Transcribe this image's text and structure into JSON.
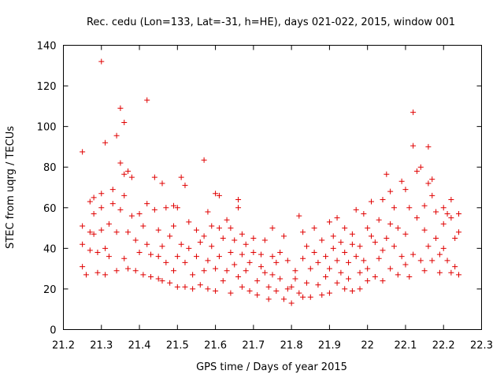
{
  "chart_data": {
    "type": "scatter",
    "title": "Rec. cedu (Lon=133, Lat=-31, h=HE), days 021-022, 2015, window 001",
    "xlabel": "GPS time / Days of year 2015",
    "ylabel": "STEC from uqrg / TECUs",
    "xlim": [
      21.2,
      22.3
    ],
    "ylim": [
      0,
      140
    ],
    "xticks": [
      "21.2",
      "21.3",
      "21.4",
      "21.5",
      "21.6",
      "21.7",
      "21.8",
      "21.9",
      "22",
      "22.1",
      "22.2",
      "22.3"
    ],
    "yticks": [
      "0",
      "20",
      "40",
      "60",
      "80",
      "100",
      "120",
      "140"
    ],
    "marker_color": "#e00000",
    "marker": "plus",
    "legend": "none",
    "grid": false,
    "series": [
      {
        "name": "STEC",
        "points": [
          [
            21.25,
            87.5
          ],
          [
            21.25,
            51
          ],
          [
            21.25,
            42
          ],
          [
            21.25,
            31
          ],
          [
            21.26,
            27
          ],
          [
            21.27,
            63
          ],
          [
            21.27,
            48
          ],
          [
            21.27,
            39
          ],
          [
            21.28,
            65
          ],
          [
            21.28,
            57
          ],
          [
            21.28,
            47
          ],
          [
            21.29,
            28
          ],
          [
            21.29,
            38
          ],
          [
            21.3,
            132
          ],
          [
            21.3,
            67
          ],
          [
            21.3,
            60
          ],
          [
            21.3,
            49
          ],
          [
            21.31,
            92
          ],
          [
            21.31,
            27
          ],
          [
            21.31,
            40
          ],
          [
            21.32,
            52
          ],
          [
            21.32,
            36
          ],
          [
            21.33,
            69
          ],
          [
            21.33,
            62
          ],
          [
            21.34,
            95.5
          ],
          [
            21.34,
            48
          ],
          [
            21.34,
            29
          ],
          [
            21.35,
            109
          ],
          [
            21.35,
            82
          ],
          [
            21.35,
            59
          ],
          [
            21.36,
            102
          ],
          [
            21.36,
            76.5
          ],
          [
            21.36,
            66
          ],
          [
            21.36,
            35
          ],
          [
            21.37,
            78
          ],
          [
            21.37,
            48
          ],
          [
            21.37,
            30
          ],
          [
            21.38,
            75
          ],
          [
            21.38,
            56
          ],
          [
            21.39,
            44
          ],
          [
            21.39,
            29
          ],
          [
            21.4,
            57
          ],
          [
            21.4,
            38
          ],
          [
            21.41,
            51
          ],
          [
            21.41,
            27
          ],
          [
            21.42,
            113
          ],
          [
            21.42,
            62
          ],
          [
            21.42,
            42
          ],
          [
            21.43,
            37
          ],
          [
            21.43,
            26
          ],
          [
            21.44,
            75
          ],
          [
            21.44,
            59
          ],
          [
            21.45,
            49
          ],
          [
            21.45,
            36
          ],
          [
            21.45,
            25
          ],
          [
            21.46,
            72
          ],
          [
            21.46,
            41
          ],
          [
            21.46,
            24
          ],
          [
            21.47,
            60
          ],
          [
            21.47,
            33
          ],
          [
            21.48,
            46
          ],
          [
            21.48,
            23
          ],
          [
            21.49,
            61
          ],
          [
            21.49,
            51
          ],
          [
            21.49,
            29
          ],
          [
            21.5,
            60
          ],
          [
            21.5,
            36
          ],
          [
            21.5,
            21
          ],
          [
            21.51,
            75
          ],
          [
            21.51,
            42
          ],
          [
            21.52,
            71
          ],
          [
            21.52,
            33
          ],
          [
            21.52,
            21
          ],
          [
            21.53,
            53
          ],
          [
            21.53,
            40
          ],
          [
            21.54,
            27
          ],
          [
            21.54,
            20
          ],
          [
            21.55,
            49
          ],
          [
            21.55,
            36
          ],
          [
            21.56,
            43
          ],
          [
            21.56,
            22
          ],
          [
            21.57,
            83.5
          ],
          [
            21.57,
            46
          ],
          [
            21.57,
            29
          ],
          [
            21.58,
            58
          ],
          [
            21.58,
            34
          ],
          [
            21.58,
            20
          ],
          [
            21.59,
            51
          ],
          [
            21.59,
            41
          ],
          [
            21.6,
            67
          ],
          [
            21.6,
            30
          ],
          [
            21.6,
            19
          ],
          [
            21.61,
            66
          ],
          [
            21.61,
            50
          ],
          [
            21.61,
            36
          ],
          [
            21.62,
            45
          ],
          [
            21.62,
            24
          ],
          [
            21.63,
            54
          ],
          [
            21.63,
            29
          ],
          [
            21.64,
            50
          ],
          [
            21.64,
            38
          ],
          [
            21.64,
            18
          ],
          [
            21.65,
            44
          ],
          [
            21.65,
            32
          ],
          [
            21.66,
            64
          ],
          [
            21.66,
            60
          ],
          [
            21.66,
            26
          ],
          [
            21.67,
            47
          ],
          [
            21.67,
            37
          ],
          [
            21.67,
            21
          ],
          [
            21.68,
            42
          ],
          [
            21.68,
            29
          ],
          [
            21.69,
            33
          ],
          [
            21.69,
            19
          ],
          [
            21.7,
            45
          ],
          [
            21.7,
            38
          ],
          [
            21.71,
            24
          ],
          [
            21.71,
            17
          ],
          [
            21.72,
            37
          ],
          [
            21.72,
            31
          ],
          [
            21.73,
            28
          ],
          [
            21.73,
            44
          ],
          [
            21.74,
            21
          ],
          [
            21.74,
            15
          ],
          [
            21.75,
            50
          ],
          [
            21.75,
            36
          ],
          [
            21.75,
            27
          ],
          [
            21.76,
            33
          ],
          [
            21.76,
            19
          ],
          [
            21.77,
            38
          ],
          [
            21.77,
            25
          ],
          [
            21.78,
            46
          ],
          [
            21.78,
            15
          ],
          [
            21.79,
            34
          ],
          [
            21.79,
            20
          ],
          [
            21.8,
            21
          ],
          [
            21.8,
            13
          ],
          [
            21.81,
            29
          ],
          [
            21.81,
            25
          ],
          [
            21.82,
            56
          ],
          [
            21.82,
            18
          ],
          [
            21.83,
            48
          ],
          [
            21.83,
            35
          ],
          [
            21.83,
            16
          ],
          [
            21.84,
            41
          ],
          [
            21.84,
            23
          ],
          [
            21.85,
            30
          ],
          [
            21.85,
            16
          ],
          [
            21.86,
            50
          ],
          [
            21.86,
            38
          ],
          [
            21.87,
            33
          ],
          [
            21.87,
            22
          ],
          [
            21.88,
            44
          ],
          [
            21.88,
            17
          ],
          [
            21.89,
            36
          ],
          [
            21.89,
            26
          ],
          [
            21.9,
            53
          ],
          [
            21.9,
            30
          ],
          [
            21.9,
            18
          ],
          [
            21.91,
            46
          ],
          [
            21.91,
            40
          ],
          [
            21.92,
            55
          ],
          [
            21.92,
            34
          ],
          [
            21.92,
            23
          ],
          [
            21.93,
            43
          ],
          [
            21.93,
            28
          ],
          [
            21.94,
            50
          ],
          [
            21.94,
            38
          ],
          [
            21.94,
            20
          ],
          [
            21.95,
            33
          ],
          [
            21.95,
            25
          ],
          [
            21.96,
            47
          ],
          [
            21.96,
            42
          ],
          [
            21.96,
            19
          ],
          [
            21.97,
            59
          ],
          [
            21.97,
            36
          ],
          [
            21.98,
            41
          ],
          [
            21.98,
            28
          ],
          [
            21.98,
            20
          ],
          [
            21.99,
            57
          ],
          [
            21.99,
            34
          ],
          [
            22.0,
            50
          ],
          [
            22.0,
            30
          ],
          [
            22.0,
            24
          ],
          [
            22.01,
            63
          ],
          [
            22.01,
            46
          ],
          [
            22.02,
            43
          ],
          [
            22.02,
            26
          ],
          [
            22.03,
            54
          ],
          [
            22.03,
            35
          ],
          [
            22.04,
            64
          ],
          [
            22.04,
            39
          ],
          [
            22.04,
            24
          ],
          [
            22.05,
            76.5
          ],
          [
            22.05,
            45
          ],
          [
            22.06,
            68
          ],
          [
            22.06,
            52
          ],
          [
            22.06,
            30
          ],
          [
            22.07,
            60
          ],
          [
            22.07,
            41
          ],
          [
            22.08,
            50
          ],
          [
            22.08,
            27
          ],
          [
            22.09,
            73
          ],
          [
            22.09,
            36
          ],
          [
            22.1,
            69
          ],
          [
            22.1,
            47
          ],
          [
            22.1,
            32
          ],
          [
            22.11,
            60
          ],
          [
            22.11,
            26
          ],
          [
            22.12,
            107
          ],
          [
            22.12,
            90.5
          ],
          [
            22.12,
            37
          ],
          [
            22.13,
            78
          ],
          [
            22.13,
            55
          ],
          [
            22.14,
            80
          ],
          [
            22.14,
            34
          ],
          [
            22.15,
            61
          ],
          [
            22.15,
            49
          ],
          [
            22.15,
            29
          ],
          [
            22.16,
            90
          ],
          [
            22.16,
            72
          ],
          [
            22.16,
            41
          ],
          [
            22.17,
            74
          ],
          [
            22.17,
            66
          ],
          [
            22.17,
            34
          ],
          [
            22.18,
            58
          ],
          [
            22.18,
            45
          ],
          [
            22.19,
            37
          ],
          [
            22.19,
            28
          ],
          [
            22.2,
            60
          ],
          [
            22.2,
            52
          ],
          [
            22.2,
            40
          ],
          [
            22.21,
            57
          ],
          [
            22.21,
            34
          ],
          [
            22.22,
            64
          ],
          [
            22.22,
            55
          ],
          [
            22.22,
            28
          ],
          [
            22.23,
            45
          ],
          [
            22.23,
            31
          ],
          [
            22.24,
            57
          ],
          [
            22.24,
            48
          ],
          [
            22.24,
            27
          ]
        ]
      }
    ]
  }
}
